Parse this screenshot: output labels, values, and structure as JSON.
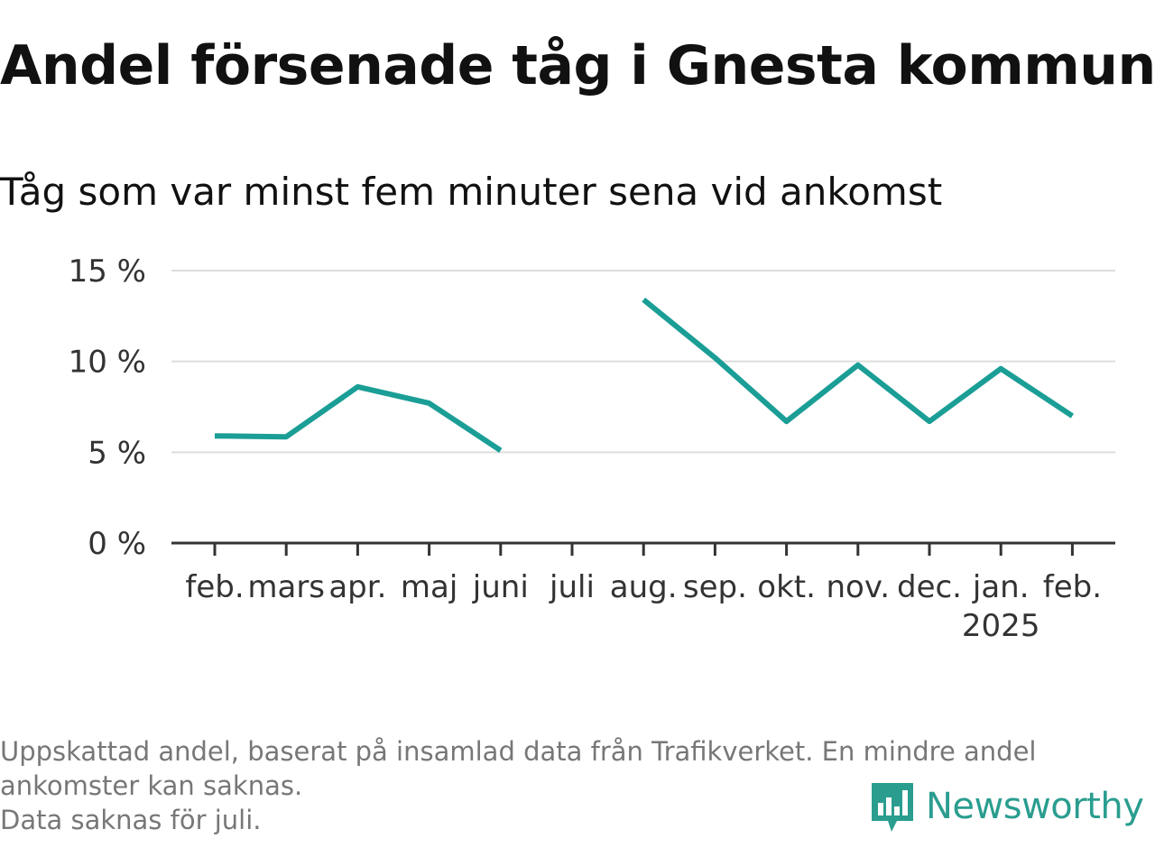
{
  "title": "Andel försenade tåg i Gnesta kommun",
  "subtitle": "Tåg som var minst fem minuter sena vid ankomst",
  "footnote": {
    "line1": "Uppskattad andel, baserat på insamlad data från Trafikverket. En mindre andel",
    "line2": "ankomster kan saknas.",
    "line3": "Data saknas för juli."
  },
  "logo": {
    "text": "Newsworthy",
    "icon": "newsworthy-bar-chart-icon",
    "color": "#2a9d8f"
  },
  "chart_data": {
    "type": "line",
    "categories": [
      "feb.",
      "mars",
      "apr.",
      "maj",
      "juni",
      "juli",
      "aug.",
      "sep.",
      "okt.",
      "nov.",
      "dec.",
      "jan.",
      "feb."
    ],
    "year_label": "2025",
    "year_label_category_index": 11,
    "series": [
      {
        "color": "#1a9e96",
        "values": [
          5.9,
          5.85,
          8.6,
          7.7,
          5.1,
          null,
          13.4,
          10.2,
          6.7,
          9.8,
          6.7,
          9.6,
          7.0
        ]
      }
    ],
    "y_ticks": [
      0,
      5,
      10,
      15
    ],
    "y_tick_labels": [
      "0 %",
      "5 %",
      "10 %",
      "15 %"
    ],
    "ylim": [
      0,
      15
    ],
    "grid": true,
    "xlabel": "",
    "ylabel": ""
  }
}
